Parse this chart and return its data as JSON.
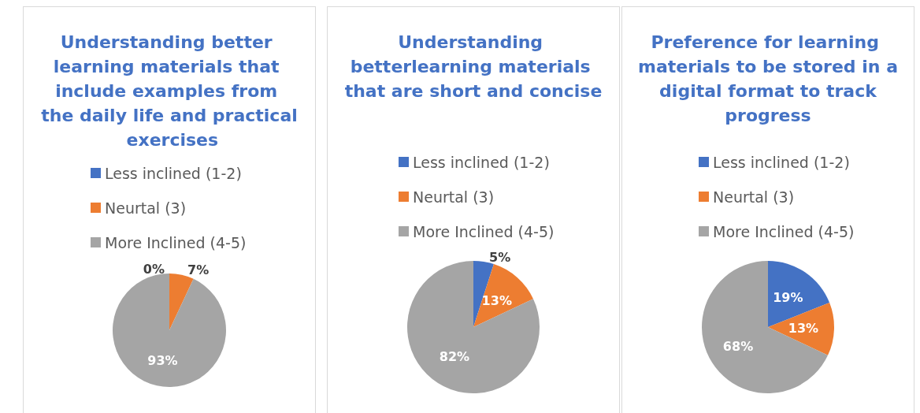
{
  "chart_data": [
    {
      "type": "pie",
      "title": "Understanding better learning materials that include examples from the daily life and practical exercises",
      "categories": [
        "Less inclined (1-2)",
        "Neurtal (3)",
        "More Inclined (4-5)"
      ],
      "values": [
        0,
        7,
        93
      ],
      "colors": [
        "#4472c4",
        "#ed7d31",
        "#a5a5a5"
      ],
      "value_labels": [
        "0%",
        "7%",
        "93%"
      ],
      "legend": "top"
    },
    {
      "type": "pie",
      "title": "Understanding betterlearning materials that are short and concise",
      "categories": [
        "Less inclined (1-2)",
        "Neurtal (3)",
        "More Inclined (4-5)"
      ],
      "values": [
        5,
        13,
        82
      ],
      "colors": [
        "#4472c4",
        "#ed7d31",
        "#a5a5a5"
      ],
      "value_labels": [
        "5%",
        "13%",
        "82%"
      ],
      "legend": "top"
    },
    {
      "type": "pie",
      "title": "Preference for learning materials to be stored in a digital format to track progress",
      "categories": [
        "Less inclined (1-2)",
        "Neurtal (3)",
        "More Inclined (4-5)"
      ],
      "values": [
        19,
        13,
        68
      ],
      "colors": [
        "#4472c4",
        "#ed7d31",
        "#a5a5a5"
      ],
      "value_labels": [
        "19%",
        "13%",
        "68%"
      ],
      "legend": "top"
    }
  ]
}
